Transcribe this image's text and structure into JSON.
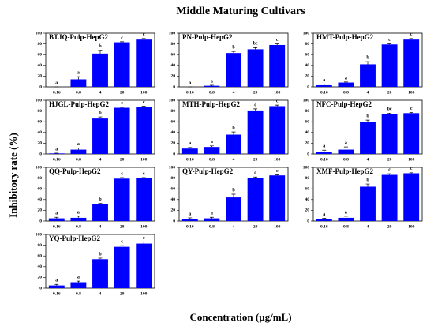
{
  "title": "Middle Maturing Cultivars",
  "xlabel": "Concentration (μg/mL)",
  "ylabel": "Inhibitory rate (%)",
  "chart_data": [
    {
      "type": "bar",
      "title": "BTJQ-Pulp-HepG2",
      "categories": [
        "0.16",
        "0.8",
        "4",
        "20",
        "100"
      ],
      "values": [
        0,
        14,
        62,
        83,
        88
      ],
      "errors": [
        0,
        5,
        6,
        1,
        2
      ],
      "annotations": [
        "a",
        "a",
        "b",
        "c",
        "c"
      ],
      "color": "#0000ff",
      "ylim": [
        0,
        100
      ],
      "yticks": [
        0,
        20,
        40,
        60,
        80,
        100
      ]
    },
    {
      "type": "bar",
      "title": "PN-Pulp-HepG2",
      "categories": [
        "0.16",
        "0.8",
        "4",
        "20",
        "100"
      ],
      "values": [
        0,
        2,
        63,
        70,
        78
      ],
      "errors": [
        0,
        1,
        3,
        3,
        2
      ],
      "annotations": [
        "a",
        "a",
        "b",
        "bc",
        "c"
      ],
      "color": "#0000ff",
      "ylim": [
        0,
        100
      ],
      "yticks": [
        0,
        20,
        40,
        60,
        80,
        100
      ]
    },
    {
      "type": "bar",
      "title": "HMT-Pulp-HepG2",
      "categories": [
        "0.16",
        "0.8",
        "4",
        "20",
        "100"
      ],
      "values": [
        3,
        8,
        42,
        79,
        88
      ],
      "errors": [
        2,
        1,
        5,
        1,
        2
      ],
      "annotations": [
        "a",
        "a",
        "b",
        "c",
        "c"
      ],
      "color": "#0000ff",
      "ylim": [
        0,
        100
      ],
      "yticks": [
        0,
        20,
        40,
        60,
        80,
        100
      ]
    },
    {
      "type": "bar",
      "title": "HJGL-Pulp-HepG2",
      "categories": [
        "0.16",
        "0.8",
        "4",
        "20",
        "100"
      ],
      "values": [
        1,
        8,
        66,
        86,
        88
      ],
      "errors": [
        0.5,
        3,
        3,
        1,
        1
      ],
      "annotations": [
        "a",
        "a",
        "b",
        "c",
        "c"
      ],
      "color": "#0000ff",
      "ylim": [
        0,
        100
      ],
      "yticks": [
        0,
        20,
        40,
        60,
        80,
        100
      ]
    },
    {
      "type": "bar",
      "title": "MTH-Pulp-HepG2",
      "categories": [
        "0.16",
        "0.8",
        "4",
        "20",
        "100"
      ],
      "values": [
        10,
        13,
        36,
        81,
        89
      ],
      "errors": [
        2,
        2,
        5,
        3,
        2
      ],
      "annotations": [
        "a",
        "a",
        "b",
        "c",
        "c"
      ],
      "color": "#0000ff",
      "ylim": [
        0,
        100
      ],
      "yticks": [
        0,
        20,
        40,
        60,
        80,
        100
      ]
    },
    {
      "type": "bar",
      "title": "NFC-Pulp-HepG2",
      "categories": [
        "0.16",
        "0.8",
        "4",
        "20",
        "100"
      ],
      "values": [
        4,
        8,
        59,
        74,
        76
      ],
      "errors": [
        3,
        5,
        4,
        2,
        1
      ],
      "annotations": [
        "a",
        "a",
        "b",
        "bc",
        "c"
      ],
      "color": "#0000ff",
      "ylim": [
        0,
        100
      ],
      "yticks": [
        0,
        20,
        40,
        60,
        80,
        100
      ]
    },
    {
      "type": "bar",
      "title": "QQ-Pulp-HepG2",
      "categories": [
        "0.16",
        "0.8",
        "4",
        "20",
        "100"
      ],
      "values": [
        5,
        6,
        31,
        79,
        80
      ],
      "errors": [
        2,
        3,
        2,
        2,
        1
      ],
      "annotations": [
        "a",
        "a",
        "b",
        "c",
        "c"
      ],
      "color": "#0000ff",
      "ylim": [
        0,
        100
      ],
      "yticks": [
        0,
        20,
        40,
        60,
        80,
        100
      ]
    },
    {
      "type": "bar",
      "title": "QY-Pulp-HepG2",
      "categories": [
        "0.16",
        "0.8",
        "4",
        "20",
        "100"
      ],
      "values": [
        4,
        5,
        44,
        80,
        85
      ],
      "errors": [
        2,
        2,
        6,
        2,
        1
      ],
      "annotations": [
        "a",
        "a",
        "b",
        "c",
        "c"
      ],
      "color": "#0000ff",
      "ylim": [
        0,
        100
      ],
      "yticks": [
        0,
        20,
        40,
        60,
        80,
        100
      ]
    },
    {
      "type": "bar",
      "title": "XMF-Pulp-HepG2",
      "categories": [
        "0.16",
        "0.8",
        "4",
        "20",
        "100"
      ],
      "values": [
        3,
        6,
        64,
        86,
        89
      ],
      "errors": [
        2,
        3,
        5,
        2,
        1
      ],
      "annotations": [
        "a",
        "a",
        "b",
        "c",
        "c"
      ],
      "color": "#0000ff",
      "ylim": [
        0,
        100
      ],
      "yticks": [
        0,
        20,
        40,
        60,
        80,
        100
      ]
    },
    {
      "type": "bar",
      "title": "YQ-Pulp-HepG2",
      "categories": [
        "0.16",
        "0.8",
        "4",
        "20",
        "100"
      ],
      "values": [
        5,
        11,
        54,
        77,
        83
      ],
      "errors": [
        2,
        2,
        2,
        2,
        3
      ],
      "annotations": [
        "a",
        "a",
        "b",
        "c",
        "c"
      ],
      "color": "#0000ff",
      "ylim": [
        0,
        100
      ],
      "yticks": [
        0,
        20,
        40,
        60,
        80,
        100
      ]
    }
  ]
}
